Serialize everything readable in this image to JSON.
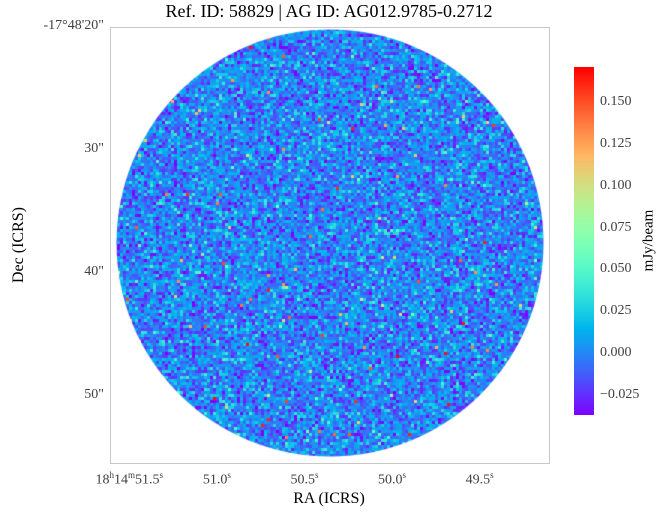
{
  "chart_data": {
    "type": "heatmap",
    "title": "Ref. ID: 58829 | AG ID: AG012.9785-0.2712",
    "xlabel": "RA (ICRS)",
    "ylabel": "Dec (ICRS)",
    "grid": false,
    "x_axis": {
      "direction": "decreasing",
      "range": [
        51.61,
        49.11
      ],
      "ticks": [
        {
          "value": 51.5,
          "label": "18^h14^m51.5^s"
        },
        {
          "value": 51.0,
          "label": "51.0^s"
        },
        {
          "value": 50.5,
          "label": "50.5^s"
        },
        {
          "value": 50.0,
          "label": "50.0^s"
        },
        {
          "value": 49.5,
          "label": "49.5^s"
        }
      ]
    },
    "y_axis": {
      "direction": "increasing-down",
      "range": [
        20.08,
        55.45
      ],
      "ticks": [
        {
          "value": 20,
          "label": "-17°48'20\""
        },
        {
          "value": 30,
          "label": "30\""
        },
        {
          "value": 40,
          "label": "40\""
        },
        {
          "value": 50,
          "label": "50\""
        }
      ]
    },
    "colorbar": {
      "label": "mJy/beam",
      "colormap": "rainbow",
      "vmin": -0.037,
      "vmax": 0.171,
      "ticks": [
        {
          "value": 0.15,
          "label": "0.150"
        },
        {
          "value": 0.125,
          "label": "0.125"
        },
        {
          "value": 0.1,
          "label": "0.100"
        },
        {
          "value": 0.075,
          "label": "0.075"
        },
        {
          "value": 0.05,
          "label": "0.050"
        },
        {
          "value": 0.025,
          "label": "0.025"
        },
        {
          "value": 0.0,
          "label": "0.000"
        },
        {
          "value": -0.025,
          "label": "−0.025"
        }
      ]
    },
    "image": {
      "shape": "circular-aperture",
      "content": "gaussian-noise-field",
      "noise_mean_mjy_per_beam": 0.0,
      "noise_sigma_mjy_per_beam": 0.018,
      "hot_pixel_fraction": 0.006,
      "pixel_size_px": 3
    }
  },
  "colors": {
    "background": "#ffffff",
    "axes_spine": "#c9c9c9",
    "tick_label": "#404040",
    "title_text": "#000000",
    "cmap_low": "#8000ff",
    "cmap_high": "#ff0000"
  }
}
